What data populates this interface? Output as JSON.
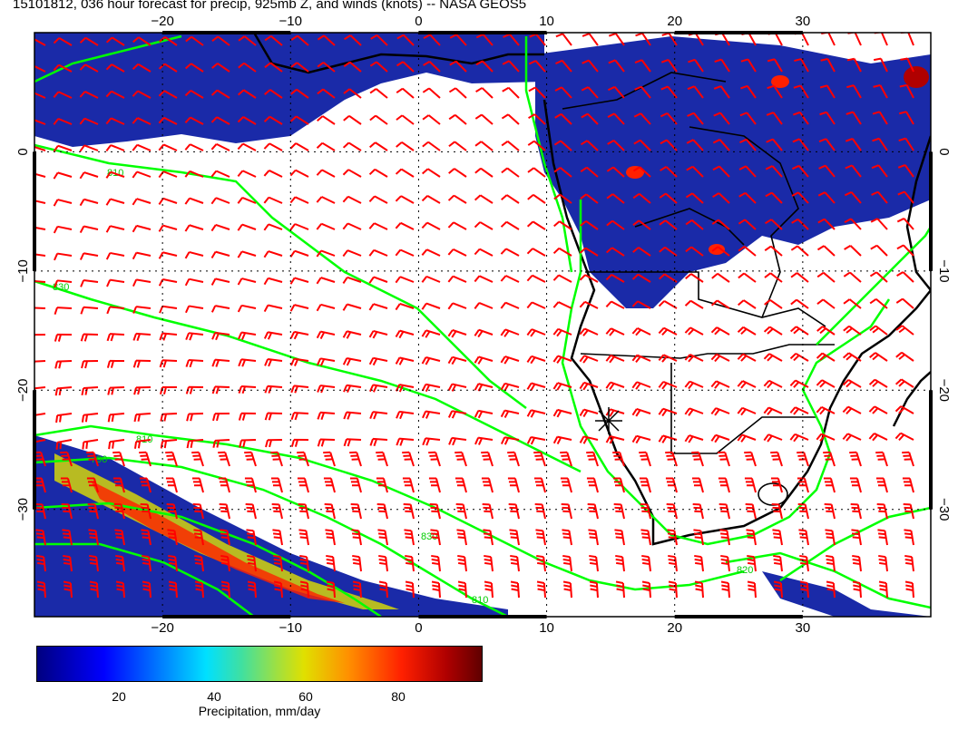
{
  "title": "15101812, 036 hour forecast for precip, 925mb Z, and winds (knots) -- NASA GEOS5",
  "map": {
    "lon_range": [
      -30,
      40
    ],
    "lat_range": [
      -39,
      10
    ],
    "lon_ticks": [
      -20,
      -10,
      0,
      10,
      20,
      30
    ],
    "lat_ticks": [
      0,
      -10,
      -20,
      -30
    ],
    "lon_tick_labels": [
      "−20",
      "−10",
      "0",
      "10",
      "20",
      "30"
    ],
    "lat_tick_labels": [
      "0",
      "−10",
      "−20",
      "−30"
    ],
    "gridlines": "dotted",
    "contour_color": "#00ff00",
    "wind_barb_color": "#ff0000",
    "coastline_color": "#000000",
    "contour_labels": [
      "810",
      "830",
      "790",
      "810",
      "830",
      "820",
      "810"
    ],
    "station_marker": "cross-icon"
  },
  "colorbar": {
    "ticks": [
      20,
      40,
      60,
      80
    ],
    "label": "Precipitation, mm/day",
    "range": [
      0,
      100
    ]
  }
}
